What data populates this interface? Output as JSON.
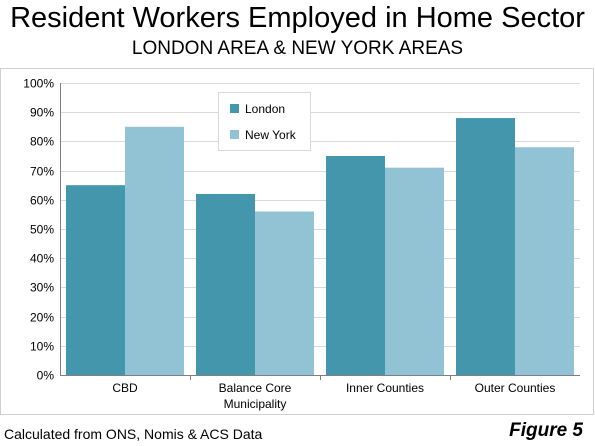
{
  "header": {
    "title": "Resident Workers Employed in Home Sector",
    "subtitle": "LONDON AREA & NEW YORK AREAS"
  },
  "footer": {
    "source": "Calculated from ONS, Nomis & ACS Data",
    "figure": "Figure 5"
  },
  "colors": {
    "london": "#4496ad",
    "new_york": "#92c3d5",
    "grid": "#d9d9d9",
    "axis": "#7f7f7f"
  },
  "chart_data": {
    "type": "bar",
    "title": "Resident Workers Employed in Home Sector",
    "subtitle": "LONDON AREA & NEW YORK AREAS",
    "categories": [
      [
        "CBD"
      ],
      [
        "Balance Core",
        "Municipality"
      ],
      [
        "Inner Counties"
      ],
      [
        "Outer Counties"
      ]
    ],
    "series": [
      {
        "name": "London",
        "values": [
          65,
          62,
          75,
          88
        ]
      },
      {
        "name": "New York",
        "values": [
          85,
          56,
          71,
          78
        ]
      }
    ],
    "ylim": [
      0,
      100
    ],
    "yticks": [
      0,
      10,
      20,
      30,
      40,
      50,
      60,
      70,
      80,
      90,
      100
    ],
    "y_tick_suffix": "%",
    "xlabel": "",
    "ylabel": "",
    "grid": true,
    "legend_position": "top-center"
  }
}
